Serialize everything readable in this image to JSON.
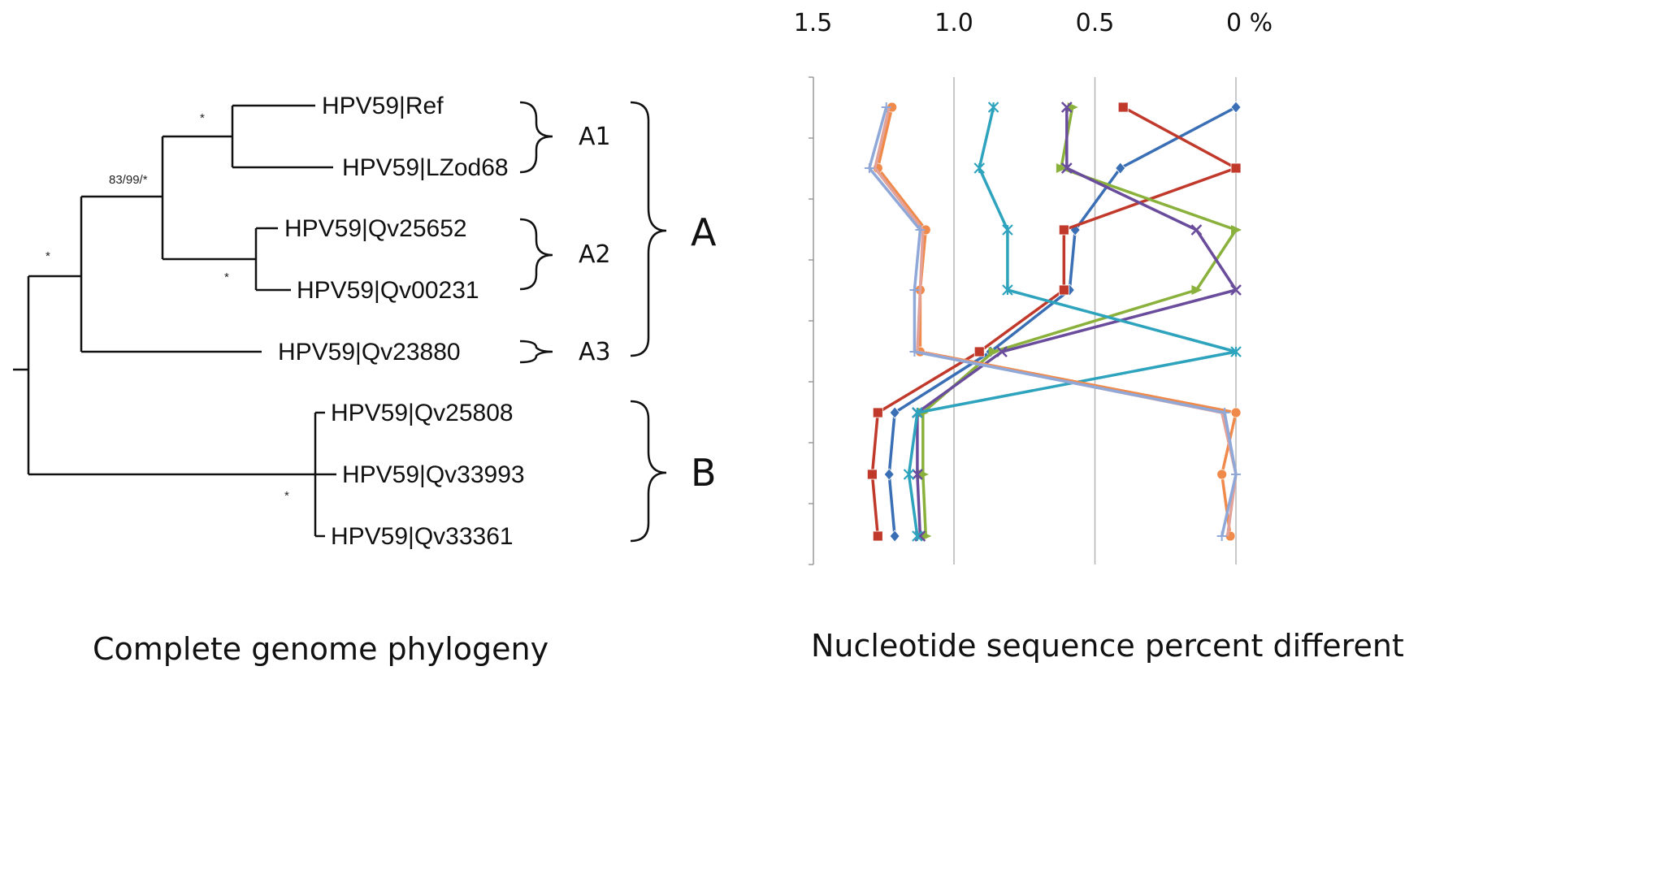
{
  "tree": {
    "leaves": [
      {
        "id": "ref",
        "label": "HPV59|Ref"
      },
      {
        "id": "lzod68",
        "label": "HPV59|LZod68"
      },
      {
        "id": "qv25652",
        "label": "HPV59|Qv25652"
      },
      {
        "id": "qv00231",
        "label": "HPV59|Qv00231"
      },
      {
        "id": "qv23880",
        "label": "HPV59|Qv23880"
      },
      {
        "id": "qv25808",
        "label": "HPV59|Qv25808"
      },
      {
        "id": "qv33993",
        "label": "HPV59|Qv33993"
      },
      {
        "id": "qv33361",
        "label": "HPV59|Qv33361"
      }
    ],
    "support": {
      "a1_node": "*",
      "a_inner_node": "83/99/*",
      "a_node": "*",
      "a2_node": "*",
      "b_node": "*"
    },
    "subclades": {
      "a1": "A1",
      "a2": "A2",
      "a3": "A3"
    },
    "clades": {
      "a": "A",
      "b": "B"
    },
    "caption": "Complete genome phylogeny"
  },
  "chart_data": {
    "type": "line",
    "xlabel": "Nucleotide sequence percent different",
    "x_tick_labels": [
      "1.5",
      "1.0",
      "0.5",
      "0 %"
    ],
    "x_ticks": [
      1.5,
      1.0,
      0.5,
      0
    ],
    "xlim": [
      1.5,
      0
    ],
    "x_reversed": true,
    "categories": [
      "HPV59|Ref",
      "HPV59|LZod68",
      "HPV59|Qv25652",
      "HPV59|Qv00231",
      "HPV59|Qv23880",
      "HPV59|Qv25808",
      "HPV59|Qv33993",
      "HPV59|Qv33361"
    ],
    "grid": true,
    "legend": "none",
    "series": [
      {
        "color": "#3a6fb5",
        "marker": "diamond",
        "values": [
          0,
          0.41,
          0.57,
          0.59,
          0.87,
          1.21,
          1.23,
          1.21
        ]
      },
      {
        "color": "#c0392b",
        "marker": "square",
        "values": [
          0.4,
          0,
          0.61,
          0.61,
          0.91,
          1.27,
          1.29,
          1.27
        ]
      },
      {
        "color": "#8ab13c",
        "marker": "triangle",
        "values": [
          0.58,
          0.62,
          0,
          0.14,
          0.86,
          1.11,
          1.11,
          1.1
        ]
      },
      {
        "color": "#6a4c9c",
        "marker": "x",
        "values": [
          0.6,
          0.6,
          0.14,
          0,
          0.83,
          1.13,
          1.13,
          1.12
        ]
      },
      {
        "color": "#2ea3bd",
        "marker": "asterisk",
        "values": [
          0.86,
          0.91,
          0.81,
          0.81,
          0,
          1.13,
          1.16,
          1.13
        ]
      },
      {
        "color": "#f08a4b",
        "marker": "circle",
        "values": [
          1.22,
          1.27,
          1.1,
          1.12,
          1.12,
          0,
          0.05,
          0.02
        ]
      },
      {
        "color": "#e2a29a",
        "marker": "none",
        "values": [
          1.23,
          1.28,
          1.11,
          1.12,
          1.13,
          0.05,
          0,
          0.03
        ]
      },
      {
        "color": "#8fa8d8",
        "marker": "plus",
        "values": [
          1.24,
          1.3,
          1.12,
          1.14,
          1.14,
          0.04,
          0,
          0.05
        ]
      }
    ]
  }
}
